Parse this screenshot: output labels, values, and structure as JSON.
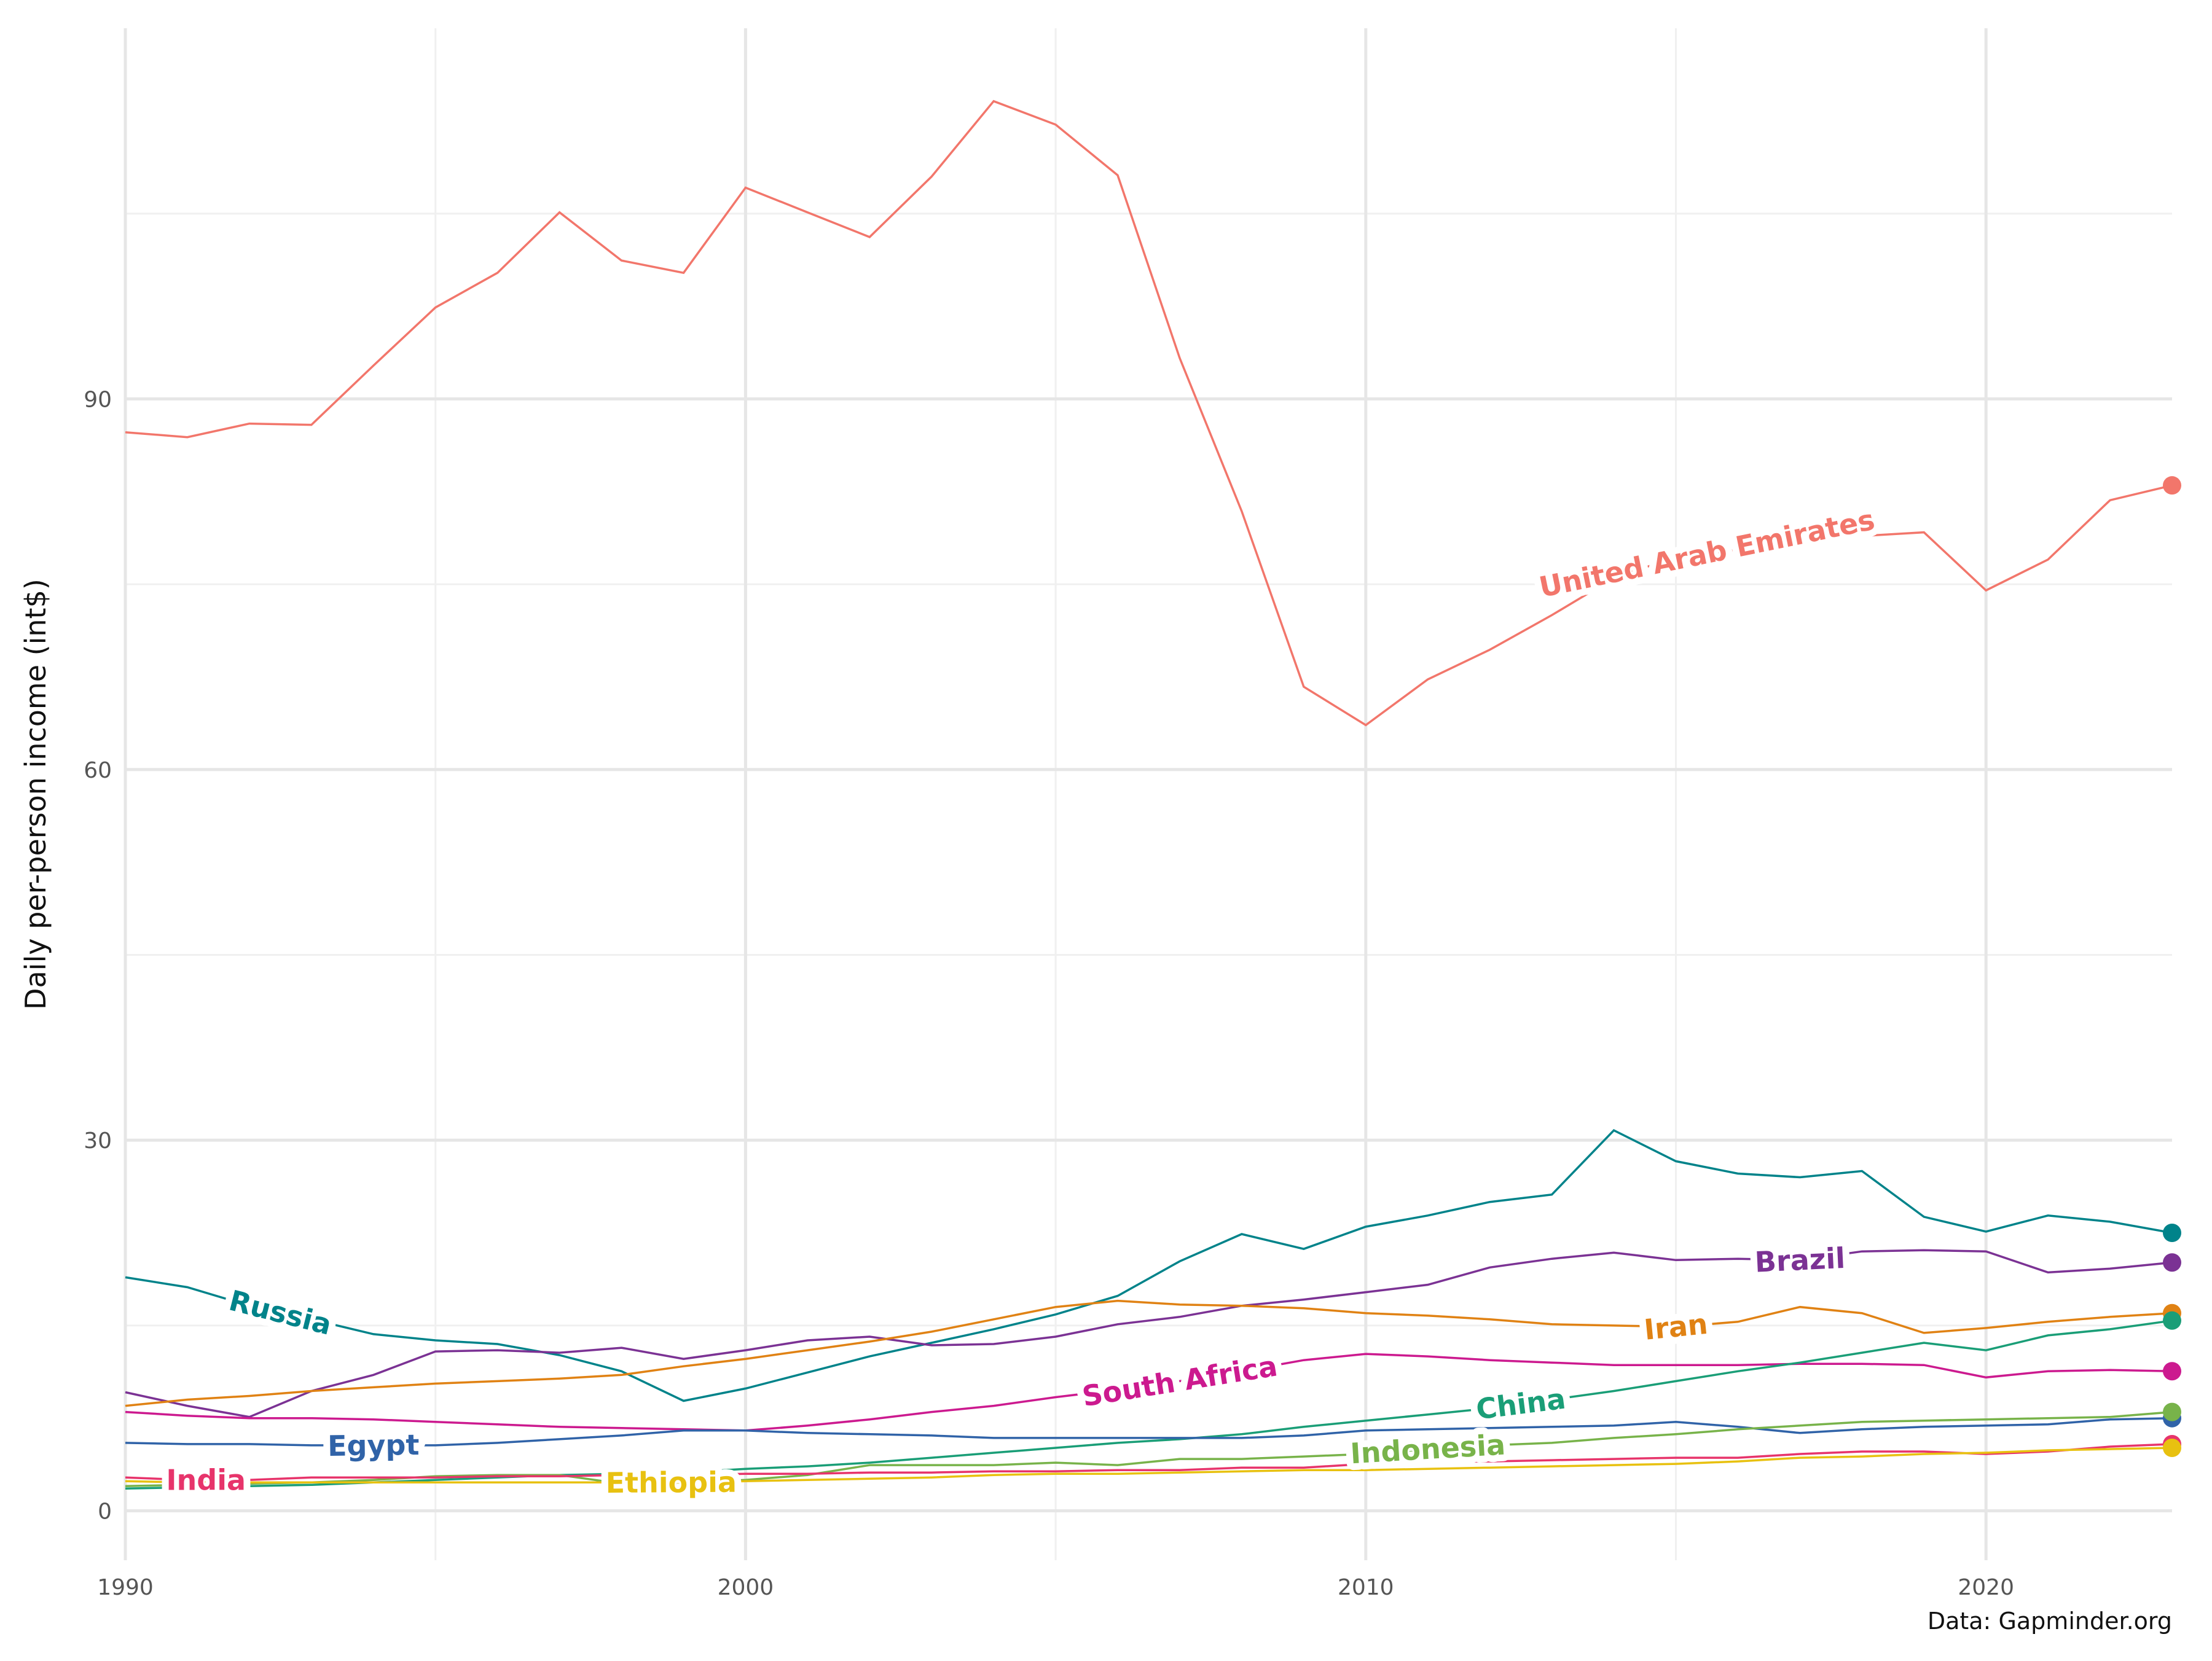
{
  "chart_data": {
    "type": "line",
    "y_label": "Daily per-person income (int$)",
    "caption": "Data: Gapminder.org",
    "x": [
      1990,
      1991,
      1992,
      1993,
      1994,
      1995,
      1996,
      1997,
      1998,
      1999,
      2000,
      2001,
      2002,
      2003,
      2004,
      2005,
      2006,
      2007,
      2008,
      2009,
      2010,
      2011,
      2012,
      2013,
      2014,
      2015,
      2016,
      2017,
      2018,
      2019,
      2020,
      2021,
      2022,
      2023
    ],
    "xlim": [
      1990,
      2023
    ],
    "xticks": [
      1990,
      2000,
      2010,
      2020
    ],
    "xminor": [
      1995,
      2005,
      2015
    ],
    "ylim": [
      -4,
      120
    ],
    "yticks": [
      0,
      30,
      60,
      90
    ],
    "yminor": [
      15,
      45,
      75,
      105
    ],
    "grid": true,
    "legend": "direct-labels",
    "end_points": true,
    "series": [
      {
        "name": "United Arab Emirates",
        "color": "#f2766b",
        "values": [
          87.3,
          86.9,
          88.0,
          87.9,
          92.7,
          97.4,
          100.2,
          105.1,
          101.2,
          100.2,
          107.1,
          105.1,
          103.1,
          108.0,
          114.1,
          112.2,
          108.1,
          93.3,
          80.9,
          66.7,
          63.6,
          67.3,
          69.7,
          72.5,
          75.5,
          77.2,
          77.8,
          78.6,
          78.9,
          79.2,
          74.5,
          77.0,
          81.8,
          83.0
        ]
      },
      {
        "name": "Russia",
        "color": "#00838a",
        "values": [
          18.9,
          18.1,
          16.6,
          15.5,
          14.3,
          13.8,
          13.5,
          12.6,
          11.3,
          8.9,
          9.9,
          11.2,
          12.5,
          13.6,
          14.7,
          15.9,
          17.4,
          20.2,
          22.4,
          21.2,
          23.0,
          23.9,
          25.0,
          25.6,
          30.8,
          28.3,
          27.3,
          27.0,
          27.5,
          23.8,
          22.6,
          23.9,
          23.4,
          22.5
        ]
      },
      {
        "name": "Brazil",
        "color": "#7b3294",
        "values": [
          9.6,
          8.5,
          7.6,
          9.7,
          11.0,
          12.9,
          13.0,
          12.8,
          13.2,
          12.3,
          13.0,
          13.8,
          14.1,
          13.4,
          13.5,
          14.1,
          15.1,
          15.7,
          16.6,
          17.1,
          17.7,
          18.3,
          19.7,
          20.4,
          20.9,
          20.3,
          20.4,
          20.3,
          21.0,
          21.1,
          21.0,
          19.3,
          19.6,
          20.1
        ]
      },
      {
        "name": "Iran",
        "color": "#e08214",
        "values": [
          8.5,
          9.0,
          9.3,
          9.7,
          10.0,
          10.3,
          10.5,
          10.7,
          11.0,
          11.7,
          12.3,
          13.0,
          13.7,
          14.5,
          15.5,
          16.5,
          17.0,
          16.7,
          16.6,
          16.4,
          16.0,
          15.8,
          15.5,
          15.1,
          15.0,
          14.9,
          15.3,
          16.5,
          16.0,
          14.4,
          14.8,
          15.3,
          15.7,
          16.0
        ]
      },
      {
        "name": "South Africa",
        "color": "#cc1a8f",
        "values": [
          8.0,
          7.7,
          7.5,
          7.5,
          7.4,
          7.2,
          7.0,
          6.8,
          6.7,
          6.6,
          6.5,
          6.9,
          7.4,
          8.0,
          8.5,
          9.2,
          9.8,
          10.5,
          11.3,
          12.2,
          12.7,
          12.5,
          12.2,
          12.0,
          11.8,
          11.8,
          11.8,
          11.9,
          11.9,
          11.8,
          10.8,
          11.3,
          11.4,
          11.3
        ]
      },
      {
        "name": "China",
        "color": "#1a9e77",
        "values": [
          1.8,
          1.9,
          2.0,
          2.1,
          2.3,
          2.5,
          2.7,
          2.9,
          3.0,
          3.1,
          3.4,
          3.6,
          3.9,
          4.3,
          4.7,
          5.1,
          5.5,
          5.8,
          6.2,
          6.8,
          7.3,
          7.8,
          8.3,
          9.0,
          9.7,
          10.5,
          11.3,
          12.0,
          12.8,
          13.6,
          13.0,
          14.2,
          14.7,
          15.4
        ]
      },
      {
        "name": "Egypt",
        "color": "#3063a8",
        "values": [
          5.5,
          5.4,
          5.4,
          5.3,
          5.3,
          5.3,
          5.5,
          5.8,
          6.1,
          6.5,
          6.5,
          6.3,
          6.2,
          6.1,
          5.9,
          5.9,
          5.9,
          5.9,
          5.9,
          6.1,
          6.5,
          6.6,
          6.7,
          6.8,
          6.9,
          7.2,
          6.8,
          6.3,
          6.6,
          6.8,
          6.9,
          7.0,
          7.4,
          7.5
        ]
      },
      {
        "name": "Indonesia",
        "color": "#78b34a",
        "values": [
          2.0,
          2.1,
          2.2,
          2.3,
          2.5,
          2.8,
          2.9,
          2.9,
          2.2,
          2.3,
          2.5,
          2.9,
          3.7,
          3.7,
          3.7,
          3.9,
          3.7,
          4.2,
          4.2,
          4.4,
          4.6,
          5.0,
          5.3,
          5.5,
          5.9,
          6.2,
          6.6,
          6.9,
          7.2,
          7.3,
          7.4,
          7.5,
          7.6,
          8.0
        ]
      },
      {
        "name": "India",
        "color": "#e7346b",
        "values": [
          2.7,
          2.5,
          2.5,
          2.7,
          2.7,
          2.7,
          2.8,
          2.8,
          2.9,
          2.9,
          3.0,
          3.0,
          3.1,
          3.1,
          3.2,
          3.2,
          3.3,
          3.3,
          3.5,
          3.5,
          3.8,
          4.0,
          4.0,
          4.1,
          4.2,
          4.3,
          4.3,
          4.6,
          4.8,
          4.8,
          4.6,
          4.8,
          5.2,
          5.4
        ]
      },
      {
        "name": "Ethiopia",
        "color": "#e8c110",
        "values": [
          2.4,
          2.3,
          2.3,
          2.3,
          2.3,
          2.3,
          2.3,
          2.3,
          2.3,
          2.3,
          2.4,
          2.5,
          2.6,
          2.7,
          2.9,
          3.0,
          3.0,
          3.1,
          3.2,
          3.3,
          3.3,
          3.4,
          3.5,
          3.6,
          3.7,
          3.8,
          4.0,
          4.3,
          4.4,
          4.6,
          4.7,
          4.9,
          5.0,
          5.1
        ]
      }
    ]
  }
}
